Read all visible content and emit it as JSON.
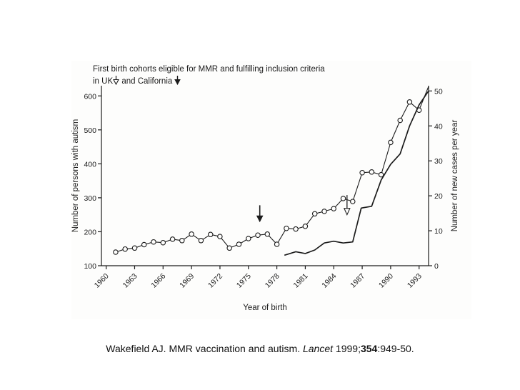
{
  "figure": {
    "title_line1": "First birth cohorts eligible for MMR and fulfilling inclusion criteria",
    "title_line2_pre": "in UK",
    "title_line2_mid": " and California ",
    "open_arrow_meaning": "UK",
    "filled_arrow_meaning": "California"
  },
  "caption": {
    "part1": "Wakefield AJ. MMR vaccination and autism. ",
    "journal": "Lancet",
    "part2": " 1999;",
    "volume": "354",
    "part3": ":949-50."
  },
  "chart_data": {
    "type": "line",
    "title": "First birth cohorts eligible for MMR and fulfilling inclusion criteria in UK (open arrow) and California (filled arrow)",
    "xlabel": "Year of birth",
    "x_range": [
      1959.5,
      1994
    ],
    "x_ticks": [
      1960,
      1963,
      1966,
      1969,
      1972,
      1975,
      1978,
      1981,
      1984,
      1987,
      1990,
      1993
    ],
    "left_axis": {
      "label": "Number of persons with autism",
      "min": 100,
      "max": 630,
      "ticks": [
        100,
        200,
        300,
        400,
        500,
        600
      ]
    },
    "right_axis": {
      "label": "Number of new cases per year",
      "min": 0,
      "max": 51.5,
      "ticks": [
        0,
        10,
        20,
        30,
        40,
        50
      ]
    },
    "grid": false,
    "legend": "none",
    "series": [
      {
        "name": "Number of persons with autism",
        "axis": "left",
        "marker": "open-circle",
        "points": [
          [
            1961,
            140
          ],
          [
            1962,
            149
          ],
          [
            1963,
            152
          ],
          [
            1964,
            162
          ],
          [
            1965,
            170
          ],
          [
            1966,
            168
          ],
          [
            1967,
            178
          ],
          [
            1968,
            174
          ],
          [
            1969,
            193
          ],
          [
            1970,
            174
          ],
          [
            1971,
            192
          ],
          [
            1972,
            186
          ],
          [
            1973,
            152
          ],
          [
            1974,
            163
          ],
          [
            1975,
            180
          ],
          [
            1976,
            190
          ],
          [
            1977,
            193
          ],
          [
            1978,
            163
          ],
          [
            1979,
            210
          ],
          [
            1980,
            208
          ],
          [
            1981,
            216
          ],
          [
            1982,
            253
          ],
          [
            1983,
            260
          ],
          [
            1984,
            268
          ],
          [
            1985,
            298
          ],
          [
            1986,
            289
          ],
          [
            1987,
            374
          ],
          [
            1988,
            376
          ],
          [
            1989,
            368
          ],
          [
            1990,
            463
          ],
          [
            1991,
            528
          ],
          [
            1992,
            582
          ],
          [
            1993,
            558
          ]
        ],
        "line_extension": [
          [
            1994,
            628
          ]
        ]
      },
      {
        "name": "Number of new cases per year",
        "axis": "right",
        "marker": "none",
        "points": [
          [
            1978.8,
            3
          ],
          [
            1980,
            4
          ],
          [
            1981,
            3.5
          ],
          [
            1982,
            4.5
          ],
          [
            1983,
            6.5
          ],
          [
            1984,
            7
          ],
          [
            1985,
            6.5
          ],
          [
            1986,
            6.8
          ],
          [
            1986.9,
            16.5
          ],
          [
            1988,
            17
          ],
          [
            1989,
            24.5
          ],
          [
            1990,
            29
          ],
          [
            1991,
            32
          ],
          [
            1992,
            40
          ],
          [
            1993,
            46
          ],
          [
            1994,
            50
          ]
        ]
      }
    ],
    "annotations": [
      {
        "type": "arrow-down",
        "style": "filled",
        "x": 1976.2,
        "tip": 230,
        "tail": 278,
        "axis": "left"
      },
      {
        "type": "arrow-down",
        "style": "open",
        "x": 1985.4,
        "tip": 250,
        "tail": 308,
        "axis": "left"
      }
    ],
    "colors": {
      "line": "#1c1c1c",
      "background": "#fdfdfc"
    }
  }
}
